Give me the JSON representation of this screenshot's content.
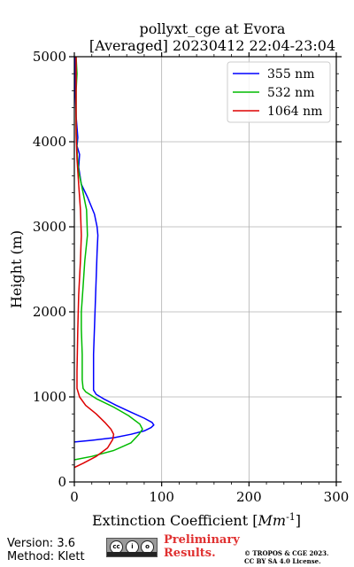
{
  "chart_data": {
    "type": "line",
    "title": "pollyxt_cge at Evora",
    "subtitle": "[Averaged] 20230412 22:04-23:04",
    "xlabel": "Extinction Coefficient [Mm^{-1}]",
    "ylabel": "Height (m)",
    "xlim": [
      0,
      300
    ],
    "ylim": [
      0,
      5000
    ],
    "xticks": [
      0,
      100,
      200,
      300
    ],
    "yticks": [
      0,
      1000,
      2000,
      3000,
      4000,
      5000
    ],
    "grid": true,
    "legend_position": "top-right",
    "series": [
      {
        "name": "355 nm",
        "color": "#0000ff",
        "points": [
          [
            0,
            470
          ],
          [
            20,
            490
          ],
          [
            45,
            520
          ],
          [
            65,
            560
          ],
          [
            80,
            600
          ],
          [
            88,
            640
          ],
          [
            91,
            670
          ],
          [
            89,
            700
          ],
          [
            80,
            750
          ],
          [
            65,
            820
          ],
          [
            48,
            900
          ],
          [
            33,
            980
          ],
          [
            25,
            1030
          ],
          [
            22,
            1080
          ],
          [
            22,
            1200
          ],
          [
            22,
            1500
          ],
          [
            23,
            1800
          ],
          [
            24,
            2100
          ],
          [
            25,
            2400
          ],
          [
            26,
            2700
          ],
          [
            27,
            2900
          ],
          [
            26,
            3000
          ],
          [
            23,
            3150
          ],
          [
            15,
            3350
          ],
          [
            8,
            3500
          ],
          [
            5,
            3700
          ],
          [
            6,
            3850
          ],
          [
            3,
            3950
          ],
          [
            4,
            4050
          ],
          [
            2,
            4300
          ],
          [
            1,
            4600
          ],
          [
            1,
            5000
          ]
        ]
      },
      {
        "name": "532 nm",
        "color": "#00bb00",
        "points": [
          [
            0,
            260
          ],
          [
            20,
            300
          ],
          [
            45,
            370
          ],
          [
            65,
            460
          ],
          [
            74,
            560
          ],
          [
            78,
            620
          ],
          [
            75,
            680
          ],
          [
            62,
            780
          ],
          [
            45,
            880
          ],
          [
            25,
            980
          ],
          [
            13,
            1060
          ],
          [
            10,
            1100
          ],
          [
            9,
            1200
          ],
          [
            9,
            1500
          ],
          [
            8,
            1800
          ],
          [
            8,
            2000
          ],
          [
            10,
            2300
          ],
          [
            12,
            2600
          ],
          [
            15,
            2900
          ],
          [
            14,
            3200
          ],
          [
            9,
            3450
          ],
          [
            5,
            3650
          ],
          [
            3,
            3900
          ],
          [
            2,
            4200
          ],
          [
            2,
            4600
          ],
          [
            3,
            4800
          ],
          [
            2,
            5000
          ]
        ]
      },
      {
        "name": "1064 nm",
        "color": "#dd0000",
        "points": [
          [
            0,
            170
          ],
          [
            10,
            220
          ],
          [
            25,
            300
          ],
          [
            38,
            400
          ],
          [
            44,
            500
          ],
          [
            45,
            560
          ],
          [
            42,
            620
          ],
          [
            35,
            700
          ],
          [
            25,
            800
          ],
          [
            13,
            900
          ],
          [
            6,
            1000
          ],
          [
            3,
            1100
          ],
          [
            3,
            1300
          ],
          [
            4,
            1800
          ],
          [
            5,
            2200
          ],
          [
            7,
            2600
          ],
          [
            8,
            2900
          ],
          [
            7,
            3200
          ],
          [
            5,
            3500
          ],
          [
            3,
            3800
          ],
          [
            2,
            4100
          ],
          [
            2,
            4600
          ],
          [
            2,
            5000
          ]
        ]
      }
    ]
  },
  "footer": {
    "version": "Version: 3.6",
    "method": "Method: Klett",
    "preliminary_line1": "Preliminary",
    "preliminary_line2": "Results.",
    "copyright_line1": "© TROPOS & CGE 2023.",
    "copyright_line2": "CC BY SA 4.0 License.",
    "license_badge_text": [
      "cc",
      "i",
      "o"
    ]
  }
}
